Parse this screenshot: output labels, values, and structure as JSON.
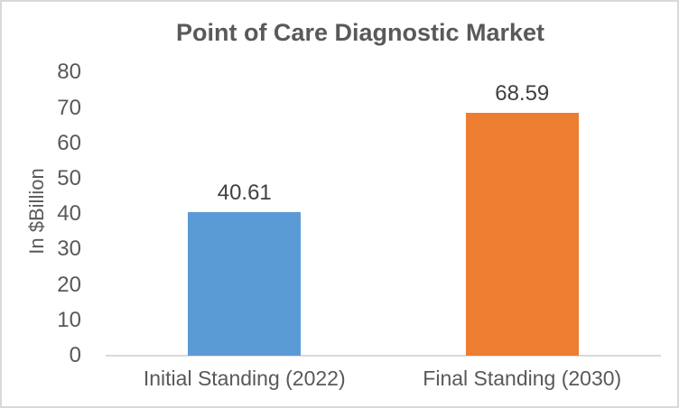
{
  "chart_data": {
    "type": "bar",
    "title": "Point of Care Diagnostic Market",
    "xlabel": "",
    "ylabel": "In $Billion",
    "categories": [
      "Initial Standing (2022)",
      "Final Standing (2030)"
    ],
    "values": [
      40.61,
      68.59
    ],
    "value_labels": [
      "40.61",
      "68.59"
    ],
    "bar_colors": [
      "#5B9BD5",
      "#ED7D31"
    ],
    "ylim": [
      0,
      80
    ],
    "yticks": [
      0,
      10,
      20,
      30,
      40,
      50,
      60,
      70,
      80
    ],
    "gridlines": false,
    "legend": false
  },
  "style_colors": {
    "title_text": "#595959",
    "axis_text": "#595959",
    "data_label_text": "#404040",
    "axis_line": "#D9D9D9",
    "chart_border": "#D9D9D9",
    "background": "#FFFFFF"
  }
}
